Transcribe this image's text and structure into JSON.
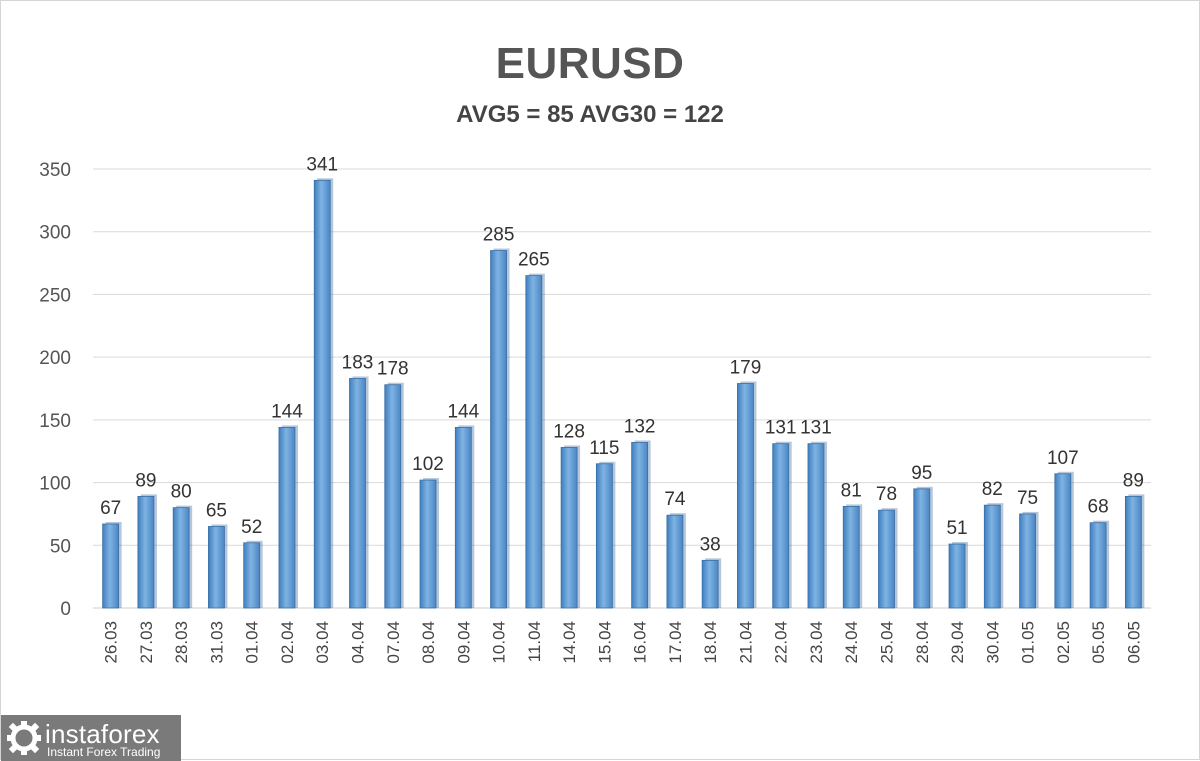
{
  "chart_data": {
    "type": "bar",
    "title": "EURUSD",
    "subtitle": "AVG5 = 85 AVG30 = 122",
    "categories": [
      "26.03",
      "27.03",
      "28.03",
      "31.03",
      "01.04",
      "02.04",
      "03.04",
      "04.04",
      "07.04",
      "08.04",
      "09.04",
      "10.04",
      "11.04",
      "14.04",
      "15.04",
      "16.04",
      "17.04",
      "18.04",
      "21.04",
      "22.04",
      "23.04",
      "24.04",
      "25.04",
      "28.04",
      "29.04",
      "30.04",
      "01.05",
      "02.05",
      "05.05",
      "06.05"
    ],
    "values": [
      67,
      89,
      80,
      65,
      52,
      144,
      341,
      183,
      178,
      102,
      144,
      285,
      265,
      128,
      115,
      132,
      74,
      38,
      179,
      131,
      131,
      81,
      78,
      95,
      51,
      82,
      75,
      107,
      68,
      89
    ],
    "ylim": [
      0,
      350
    ],
    "yticks": [
      0,
      50,
      100,
      150,
      200,
      250,
      300,
      350
    ],
    "grid": true,
    "legend": "none",
    "bar_color": "#5b9bd5",
    "data_labels": true
  },
  "watermark": {
    "brand": "instaforex",
    "tagline": "Instant Forex Trading"
  }
}
